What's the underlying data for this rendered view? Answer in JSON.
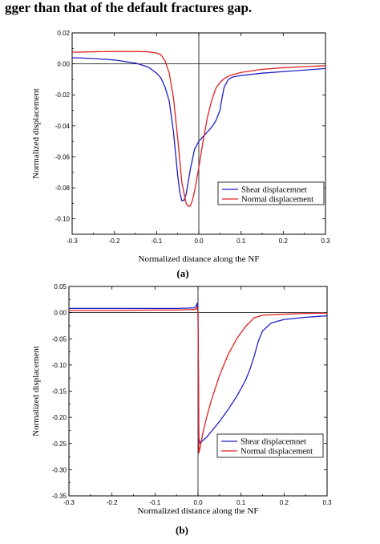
{
  "header": {
    "text": "gger than that of the default fractures gap."
  },
  "chart_data": [
    {
      "type": "line",
      "panel_label": "(a)",
      "xlabel": "Normalized distance along the NF",
      "ylabel": "Normalized displacement",
      "xlim": [
        -0.3,
        0.3
      ],
      "ylim": [
        -0.11,
        0.02
      ],
      "xticks": [
        -0.3,
        -0.2,
        -0.1,
        0.0,
        0.1,
        0.2,
        0.3
      ],
      "xtick_labels": [
        "-0.3",
        "-0.2",
        "-0.1",
        "0.0",
        "0.1",
        "0.2",
        "0.3"
      ],
      "yticks": [
        0.02,
        0.0,
        -0.02,
        -0.04,
        -0.06,
        -0.08,
        -0.1
      ],
      "ytick_labels": [
        "0.02",
        "0.00",
        "-0.02",
        "-0.04",
        "-0.06",
        "-0.08",
        "-0.10"
      ],
      "legend_position": "lower-right",
      "series": [
        {
          "name": "Shear displacemnet",
          "color": "#1f1fc8",
          "x": [
            -0.3,
            -0.25,
            -0.2,
            -0.15,
            -0.12,
            -0.1,
            -0.09,
            -0.08,
            -0.07,
            -0.06,
            -0.05,
            -0.045,
            -0.04,
            -0.035,
            -0.03,
            -0.02,
            -0.01,
            0.0,
            0.01,
            0.02,
            0.03,
            0.04,
            0.05,
            0.055,
            0.06,
            0.07,
            0.08,
            0.1,
            0.15,
            0.2,
            0.25,
            0.3
          ],
          "y": [
            0.004,
            0.0035,
            0.0025,
            0.0005,
            -0.002,
            -0.006,
            -0.009,
            -0.015,
            -0.024,
            -0.044,
            -0.072,
            -0.083,
            -0.0885,
            -0.088,
            -0.084,
            -0.068,
            -0.055,
            -0.05,
            -0.047,
            -0.044,
            -0.041,
            -0.037,
            -0.03,
            -0.022,
            -0.015,
            -0.01,
            -0.0085,
            -0.0075,
            -0.006,
            -0.005,
            -0.004,
            -0.003
          ]
        },
        {
          "name": "Normal displacement",
          "color": "#e02020",
          "x": [
            -0.3,
            -0.25,
            -0.2,
            -0.15,
            -0.12,
            -0.1,
            -0.09,
            -0.08,
            -0.07,
            -0.06,
            -0.05,
            -0.04,
            -0.03,
            -0.025,
            -0.02,
            -0.015,
            -0.01,
            0.0,
            0.01,
            0.02,
            0.03,
            0.04,
            0.05,
            0.06,
            0.07,
            0.08,
            0.1,
            0.15,
            0.2,
            0.25,
            0.3
          ],
          "y": [
            0.0075,
            0.0078,
            0.008,
            0.008,
            0.0078,
            0.007,
            0.006,
            0.002,
            -0.006,
            -0.022,
            -0.048,
            -0.077,
            -0.09,
            -0.092,
            -0.0915,
            -0.088,
            -0.082,
            -0.067,
            -0.05,
            -0.035,
            -0.024,
            -0.016,
            -0.012,
            -0.0095,
            -0.008,
            -0.007,
            -0.0055,
            -0.0035,
            -0.0025,
            -0.0018,
            -0.0012
          ]
        }
      ]
    },
    {
      "type": "line",
      "panel_label": "(b)",
      "xlabel": "Normalized distance along the NF",
      "ylabel": "Normalized displacement",
      "xlim": [
        -0.3,
        0.3
      ],
      "ylim": [
        -0.35,
        0.05
      ],
      "xticks": [
        -0.3,
        -0.2,
        -0.1,
        0.0,
        0.1,
        0.2,
        0.3
      ],
      "xtick_labels": [
        "-0.3",
        "-0.2",
        "-0.1",
        "0.0",
        "0.1",
        "0.2",
        "0.3"
      ],
      "yticks": [
        0.05,
        0.0,
        -0.05,
        -0.1,
        -0.15,
        -0.2,
        -0.25,
        -0.3,
        -0.35
      ],
      "ytick_labels": [
        "0.05",
        "0.00",
        "-0.05",
        "-0.10",
        "-0.15",
        "-0.20",
        "-0.25",
        "-0.30",
        "-0.35"
      ],
      "legend_position": "lower-right",
      "series": [
        {
          "name": "Shear displacemnet",
          "color": "#1f1fc8",
          "x": [
            -0.3,
            -0.2,
            -0.1,
            -0.05,
            -0.01,
            -0.005,
            -0.002,
            0.0,
            0.002,
            0.005,
            0.01,
            0.02,
            0.03,
            0.05,
            0.07,
            0.09,
            0.11,
            0.12,
            0.13,
            0.14,
            0.15,
            0.17,
            0.2,
            0.25,
            0.3
          ],
          "y": [
            0.008,
            0.008,
            0.008,
            0.008,
            0.009,
            0.011,
            0.018,
            0.0,
            -0.24,
            -0.25,
            -0.245,
            -0.238,
            -0.228,
            -0.208,
            -0.185,
            -0.16,
            -0.13,
            -0.11,
            -0.085,
            -0.055,
            -0.035,
            -0.02,
            -0.013,
            -0.009,
            -0.006
          ]
        },
        {
          "name": "Normal displacement",
          "color": "#e02020",
          "x": [
            -0.3,
            -0.2,
            -0.1,
            -0.05,
            -0.01,
            -0.005,
            -0.002,
            0.0,
            0.002,
            0.005,
            0.01,
            0.02,
            0.03,
            0.05,
            0.07,
            0.09,
            0.11,
            0.13,
            0.15,
            0.2,
            0.25,
            0.3
          ],
          "y": [
            0.004,
            0.004,
            0.005,
            0.005,
            0.006,
            0.007,
            0.01,
            0.0,
            -0.268,
            -0.258,
            -0.235,
            -0.2,
            -0.17,
            -0.12,
            -0.08,
            -0.05,
            -0.027,
            -0.01,
            -0.005,
            -0.003,
            -0.0015,
            -0.001
          ]
        }
      ]
    }
  ]
}
